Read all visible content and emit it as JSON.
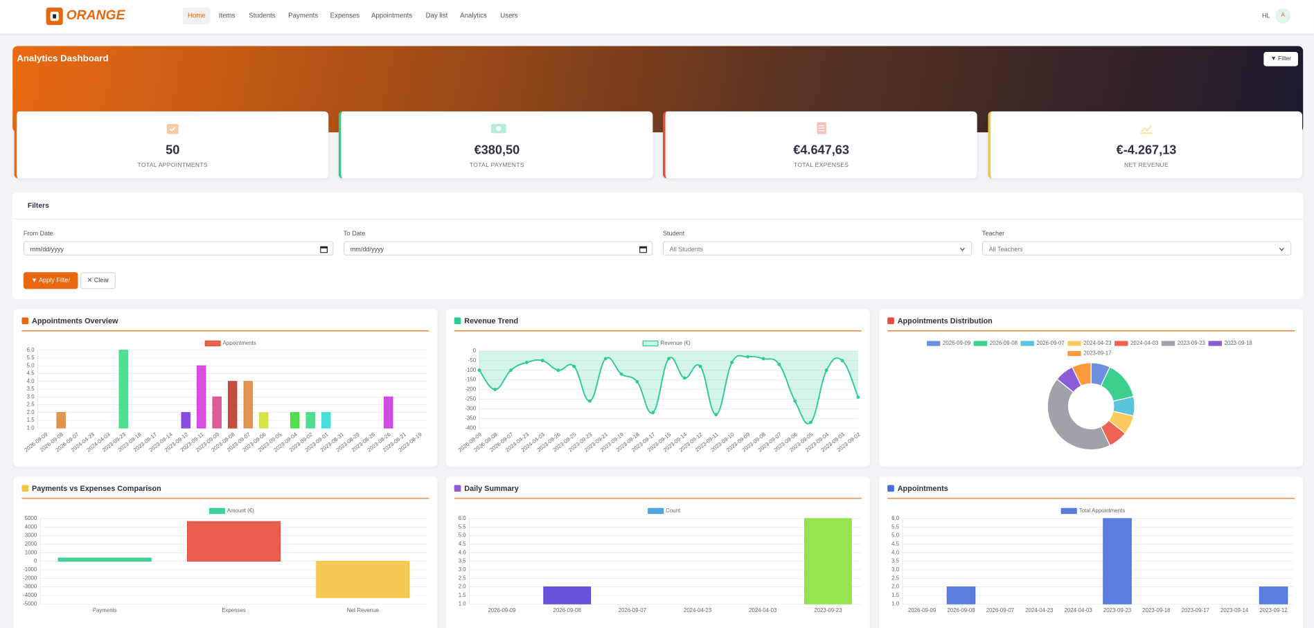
{
  "nav": {
    "brand": "ORANGE",
    "items": [
      "Home",
      "Items",
      "Students",
      "Payments",
      "Expenses",
      "Appointments",
      "Day list",
      "Analytics",
      "Users"
    ],
    "user": "HL",
    "avatar": "A"
  },
  "header": {
    "title": "Analytics Dashboard",
    "filter_button": "Filter"
  },
  "stats": [
    {
      "value": "50",
      "label": "TOTAL APPOINTMENTS"
    },
    {
      "value": "€380,50",
      "label": "TOTAL PAYMENTS"
    },
    {
      "value": "€4.647,63",
      "label": "TOTAL EXPENSES"
    },
    {
      "value": "€-4.267,13",
      "label": "NET REVENUE"
    }
  ],
  "filters": {
    "title": "Filters",
    "fields": [
      {
        "label": "From Date",
        "value": "mm/dd/yyyy"
      },
      {
        "label": "To Date",
        "value": "mm/dd/yyyy"
      },
      {
        "label": "Student",
        "value": "All Students"
      },
      {
        "label": "Teacher",
        "value": "All Teachers"
      }
    ],
    "apply": "Apply Filter",
    "clear": "Clear"
  },
  "chart_data": [
    {
      "type": "bar",
      "title": "Appointments Overview",
      "categories": [
        "2026-09-09",
        "2026-09-08",
        "2026-09-07",
        "2024-04-23",
        "2024-04-03",
        "2023-09-23",
        "2023-09-18",
        "2023-09-17",
        "2023-09-14",
        "2023-09-12",
        "2023-09-11",
        "2023-09-09",
        "2023-09-08",
        "2023-09-07",
        "2023-09-06",
        "2023-09-05",
        "2023-09-04",
        "2023-09-02",
        "2023-09-01",
        "2023-08-31",
        "2023-08-29",
        "2023-08-28",
        "2023-08-26",
        "2023-08-21",
        "2023-08-19"
      ],
      "series": [
        {
          "name": "Appointments",
          "colors": [
            "#e0573a",
            "#dd8a3e",
            "#4aa3df",
            "#9b59b6",
            "#34c3c8",
            "#3ddc84",
            "#e67e22",
            "#2ecc71",
            "#f1c40f",
            "#7b3adf",
            "#d63adf",
            "#d94a8c",
            "#c0392b",
            "#dd8a3e",
            "#d4e03a",
            "#27ae60",
            "#3ddc3a",
            "#3ddc84",
            "#34dcd4",
            "#e74c3c",
            "#95a5a6",
            "#16a085",
            "#c93adf",
            "#2980b9",
            "#f39c12"
          ],
          "values": [
            1,
            2,
            1,
            1,
            1,
            6,
            1,
            1,
            1,
            2,
            5,
            3,
            4,
            4,
            2,
            1,
            2,
            2,
            2,
            1,
            1,
            1,
            3,
            1,
            1
          ]
        }
      ],
      "ylim": [
        1,
        6
      ],
      "yticks": [
        {
          "value": 1,
          "label": "1.0"
        },
        1.5,
        {
          "value": 2,
          "label": "2.0"
        },
        2.5,
        {
          "value": 3,
          "label": "3.0"
        },
        3.5,
        {
          "value": 4,
          "label": "4.0"
        },
        4.5,
        {
          "value": 5,
          "label": "5.0"
        },
        5.5,
        {
          "value": 6,
          "label": "6.0"
        }
      ],
      "grid": true
    },
    {
      "type": "line",
      "title": "Revenue Trend",
      "categories": [
        "2026-09-09",
        "2026-09-08",
        "2026-09-07",
        "2024-04-23",
        "2024-04-03",
        "2023-09-26",
        "2023-09-25",
        "2023-09-23",
        "2023-09-21",
        "2023-09-19",
        "2023-09-18",
        "2023-09-17",
        "2023-09-15",
        "2023-09-14",
        "2023-09-12",
        "2023-09-11",
        "2023-09-10",
        "2023-09-09",
        "2023-09-08",
        "2023-09-07",
        "2023-09-06",
        "2023-09-05",
        "2023-09-04",
        "2023-09-03",
        "2023-09-02"
      ],
      "series": [
        {
          "name": "Revenue (€)",
          "color": "#2ecc8f",
          "values": [
            -100,
            -200,
            -100,
            -60,
            -50,
            -100,
            -80,
            -260,
            -40,
            -120,
            -160,
            -320,
            -40,
            -140,
            -80,
            -330,
            -60,
            -30,
            -40,
            -70,
            -260,
            -370,
            -100,
            -50,
            -240
          ]
        }
      ],
      "ylim": [
        -400,
        0
      ],
      "yticks": [
        0,
        -50,
        -100,
        -150,
        -200,
        -250,
        -300,
        -350,
        -400
      ],
      "grid": true
    },
    {
      "type": "doughnut",
      "title": "Appointments Distribution",
      "categories": [
        "2026-09-09",
        "2026-09-08",
        "2026-09-07",
        "2024-04-23",
        "2024-04-03",
        "2023-09-23",
        "2023-09-18",
        "2023-09-17"
      ],
      "values": [
        1,
        2,
        1,
        1,
        1,
        6,
        1,
        1
      ],
      "colors": [
        "#6c8fe0",
        "#3ccf8e",
        "#5bc4dc",
        "#fccb5b",
        "#ee6352",
        "#a1a1aa",
        "#8b5cd6",
        "#fb9a3c"
      ]
    },
    {
      "type": "bar",
      "title": "Payments vs Expenses Comparison",
      "categories": [
        "Payments",
        "Expenses",
        "Net Revenue"
      ],
      "series": [
        {
          "name": "Amount (€)",
          "colors": [
            "#2ecc8f",
            "#e74c3c",
            "#f5c342"
          ],
          "values": [
            380.5,
            4647.63,
            -4267.13
          ]
        }
      ],
      "ylim": [
        -5000,
        5000
      ],
      "yticks": [
        5000,
        4000,
        3000,
        2000,
        1000,
        0,
        -1000,
        -2000,
        -3000,
        -4000,
        -5000
      ],
      "grid": true
    },
    {
      "type": "bar",
      "title": "Daily Summary",
      "categories": [
        "2026-09-09",
        "2026-09-08",
        "2026-09-07",
        "2024-04-23",
        "2024-04-03",
        "2023-09-23"
      ],
      "series": [
        {
          "name": "Count",
          "colors": [
            "#3b9ede",
            "#5b3fd6",
            "#e74c3c",
            "#f1c40f",
            "#2ecc71",
            "#8be03a"
          ],
          "values": [
            1,
            2,
            1,
            1,
            1,
            6
          ]
        }
      ],
      "ylim": [
        1,
        6
      ],
      "yticks": [
        {
          "value": 1,
          "label": "1.0"
        },
        1.5,
        {
          "value": 2,
          "label": "2.0"
        },
        2.5,
        {
          "value": 3,
          "label": "3.0"
        },
        3.5,
        {
          "value": 4,
          "label": "4.0"
        },
        4.5,
        {
          "value": 5,
          "label": "5.0"
        },
        5.5,
        {
          "value": 6,
          "label": "6.0"
        }
      ],
      "grid": true
    },
    {
      "type": "bar",
      "title": "Appointments",
      "categories": [
        "2026-09-09",
        "2026-09-08",
        "2026-09-07",
        "2024-04-23",
        "2024-04-03",
        "2023-09-23",
        "2023-09-18",
        "2023-09-17",
        "2023-09-14",
        "2023-09-12"
      ],
      "series": [
        {
          "name": "Total Appointments",
          "color": "#4a6fdc",
          "values": [
            1,
            2,
            1,
            1,
            1,
            6,
            1,
            1,
            1,
            2
          ]
        }
      ],
      "ylim": [
        1,
        6
      ],
      "yticks": [
        {
          "value": 1,
          "label": "1.0"
        },
        1.5,
        {
          "value": 2,
          "label": "2.0"
        },
        2.5,
        {
          "value": 3,
          "label": "3.0"
        },
        3.5,
        {
          "value": 4,
          "label": "4.0"
        },
        4.5,
        {
          "value": 5,
          "label": "5.0"
        },
        5.5,
        {
          "value": 6,
          "label": "6.0"
        }
      ],
      "grid": true
    }
  ]
}
